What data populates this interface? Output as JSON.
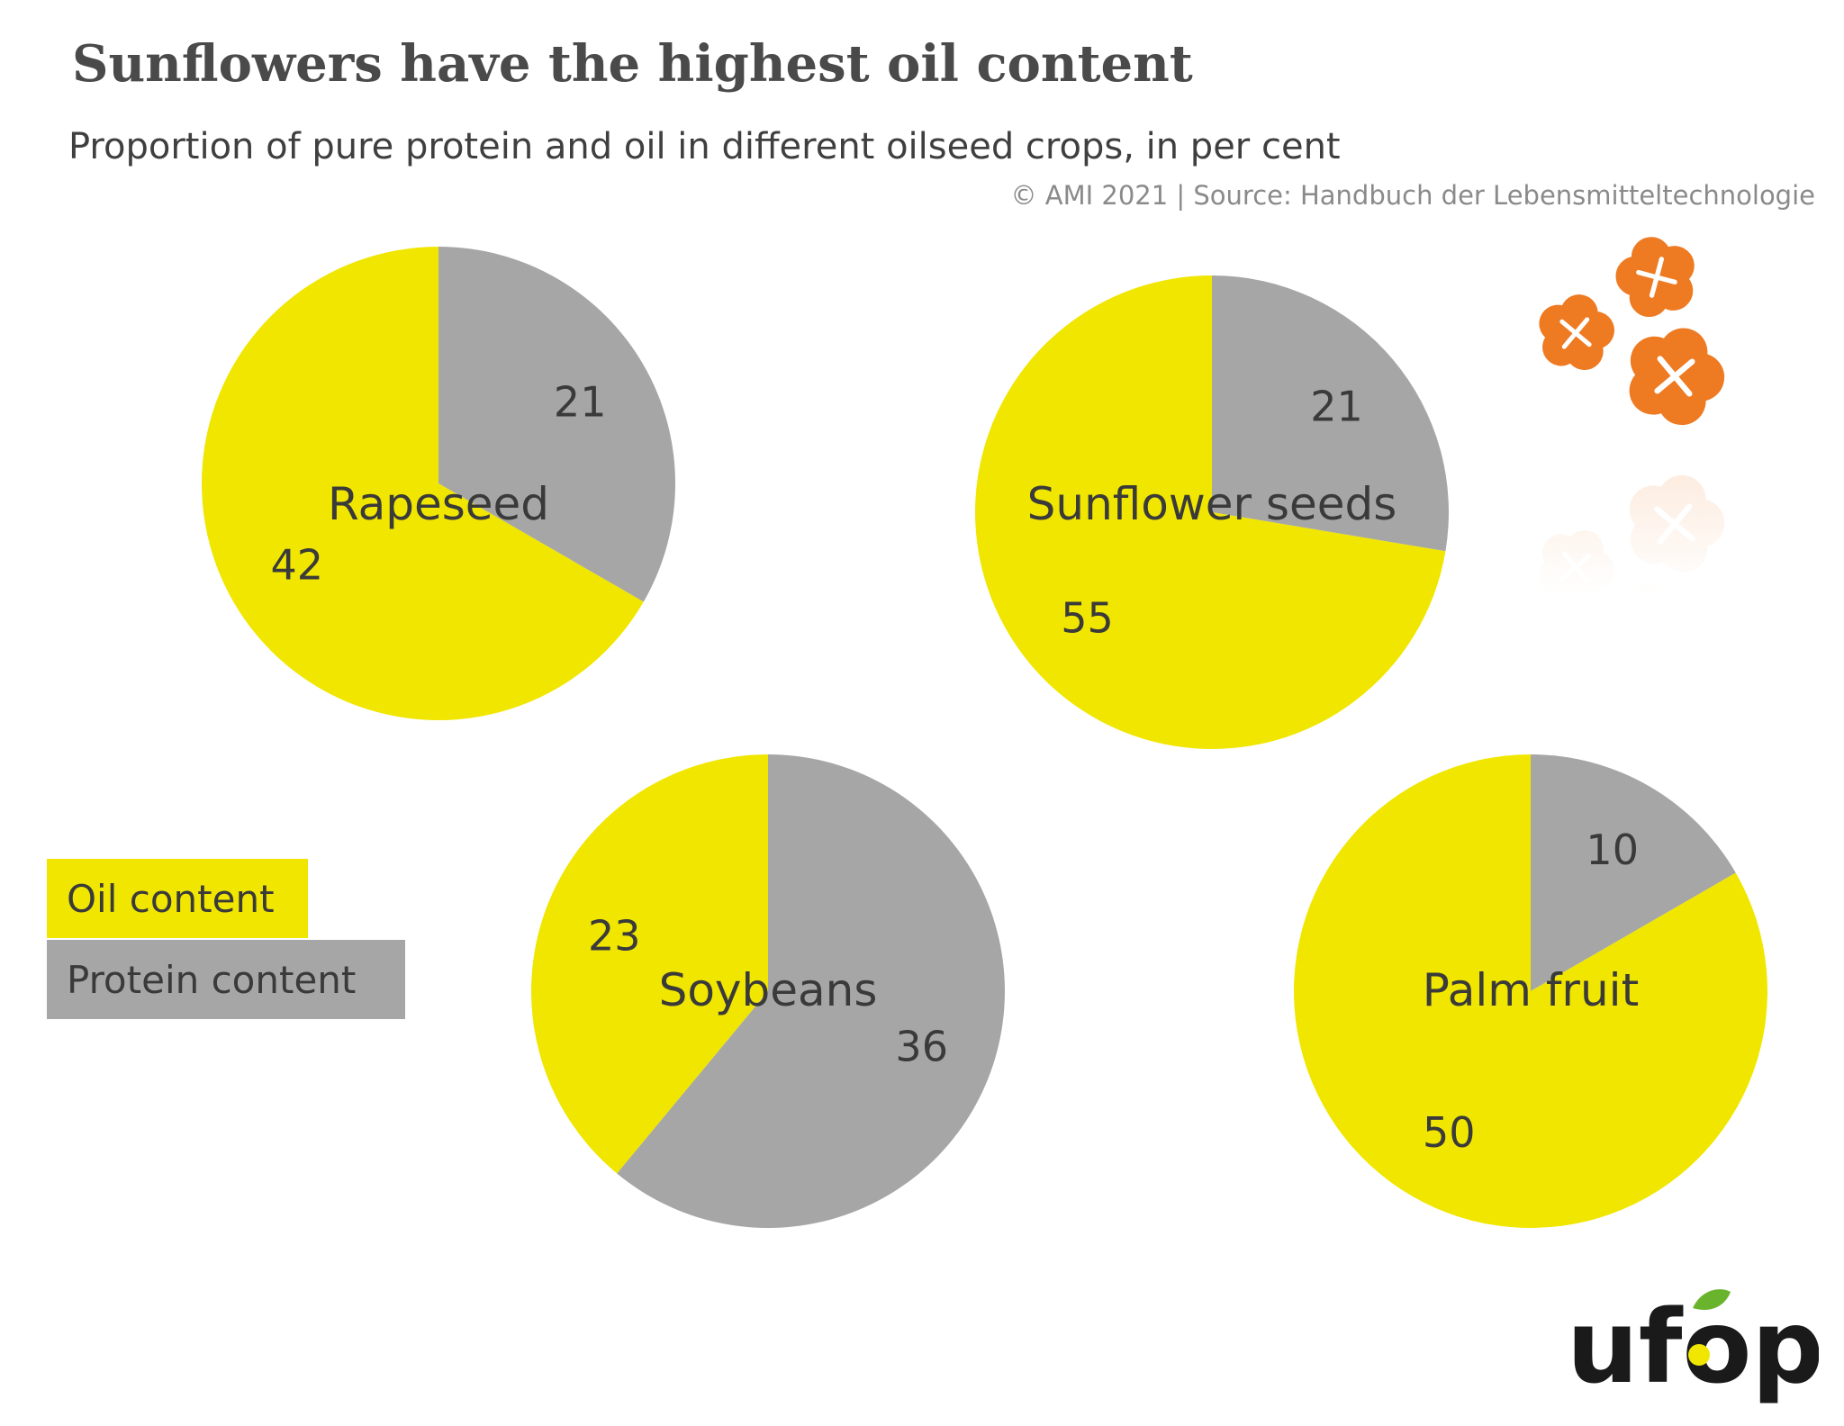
{
  "header": {
    "title": "Sunflowers have the highest oil content",
    "subtitle": "Proportion of pure protein and oil in different oilseed crops, in per cent",
    "source": "© AMI 2021 | Source: Handbuch der Lebensmitteltechnologie"
  },
  "colors": {
    "oil": "#f0e600",
    "protein": "#a6a6a6",
    "text": "#3a3a3a",
    "flower": "#ee7a22",
    "logo_text": "#1a1a1a",
    "logo_leaf": "#6ab42d"
  },
  "legend": {
    "oil": "Oil content",
    "protein": "Protein content"
  },
  "logo": {
    "text": "ufop"
  },
  "chart_data": {
    "type": "pie",
    "unit": "per cent",
    "series_names": [
      "Oil content",
      "Protein content"
    ],
    "pies": [
      {
        "name": "Rapeseed",
        "protein": 21,
        "oil": 42
      },
      {
        "name": "Sunflower seeds",
        "protein": 21,
        "oil": 55
      },
      {
        "name": "Soybeans",
        "protein": 36,
        "oil": 23
      },
      {
        "name": "Palm fruit",
        "protein": 10,
        "oil": 50
      }
    ]
  }
}
